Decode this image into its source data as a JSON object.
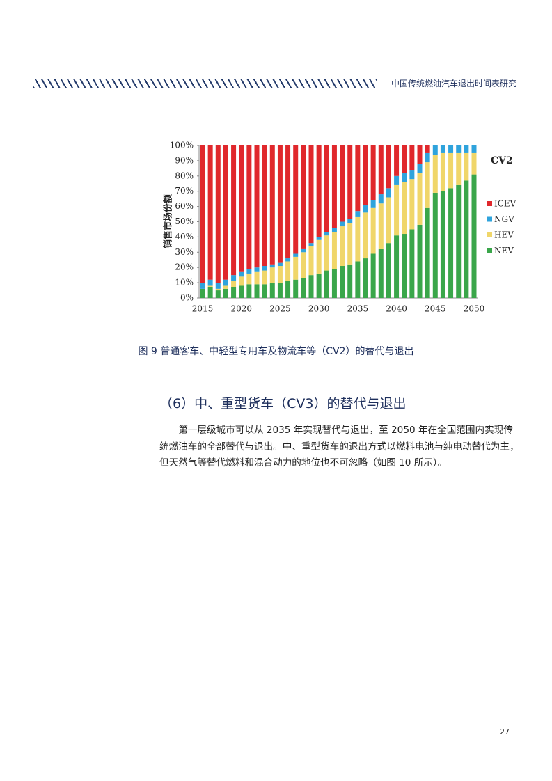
{
  "header": {
    "title": "中国传统燃油汽车退出时间表研究"
  },
  "chart_data": {
    "type": "bar",
    "stacked": true,
    "annotation": "CV2",
    "ylabel": "销售市场份额",
    "categories": [
      "2015",
      null,
      null,
      null,
      null,
      "2020",
      null,
      null,
      null,
      null,
      "2025",
      null,
      null,
      null,
      null,
      "2030",
      null,
      null,
      null,
      null,
      "2035",
      null,
      null,
      null,
      null,
      "2040",
      null,
      null,
      null,
      null,
      "2045",
      null,
      null,
      null,
      null,
      "2050"
    ],
    "series": [
      {
        "name": "ICEV",
        "color": "#e0282c",
        "values": [
          90,
          88,
          90,
          88,
          85,
          83,
          81,
          80,
          79,
          78,
          77,
          74,
          71,
          68,
          64,
          60,
          57,
          54,
          50,
          48,
          43,
          39,
          36,
          32,
          28,
          20,
          18,
          16,
          12,
          5,
          0,
          0,
          0,
          0,
          0,
          0
        ]
      },
      {
        "name": "NGV",
        "color": "#2fa3dc",
        "values": [
          4,
          4,
          4,
          4,
          4,
          3,
          3,
          3,
          3,
          2,
          2,
          2,
          2,
          2,
          2,
          2,
          2,
          3,
          3,
          3,
          4,
          5,
          5,
          6,
          6,
          6,
          6,
          6,
          6,
          6,
          6,
          5,
          5,
          5,
          5,
          5
        ]
      },
      {
        "name": "HEV",
        "color": "#f0d66a",
        "values": [
          0,
          1,
          1,
          2,
          4,
          6,
          7,
          8,
          9,
          10,
          11,
          13,
          15,
          17,
          19,
          22,
          23,
          24,
          26,
          27,
          29,
          30,
          30,
          30,
          30,
          33,
          34,
          33,
          34,
          30,
          25,
          25,
          23,
          21,
          18,
          14
        ]
      },
      {
        "name": "NEV",
        "color": "#3aa64a",
        "values": [
          6,
          7,
          5,
          6,
          7,
          8,
          9,
          9,
          9,
          10,
          10,
          11,
          12,
          13,
          15,
          16,
          18,
          19,
          21,
          22,
          24,
          26,
          29,
          32,
          36,
          41,
          42,
          45,
          48,
          59,
          69,
          70,
          72,
          74,
          77,
          81
        ]
      }
    ],
    "ylim": [
      0,
      100
    ],
    "yticks": [
      {
        "value": 0,
        "label": "0%"
      },
      {
        "value": 10,
        "label": "10%"
      },
      {
        "value": 20,
        "label": "20%"
      },
      {
        "value": 30,
        "label": "30%"
      },
      {
        "value": 40,
        "label": "40%"
      },
      {
        "value": 50,
        "label": "50%"
      },
      {
        "value": 60,
        "label": "60%"
      },
      {
        "value": 70,
        "label": "70%"
      },
      {
        "value": 80,
        "label": "80%"
      },
      {
        "value": 90,
        "label": "90%"
      },
      {
        "value": 100,
        "label": "100%"
      }
    ]
  },
  "caption": "图 9 普通客车、中轻型专用车及物流车等（CV2）的替代与退出",
  "section": {
    "heading": "（6）中、重型货车（CV3）的替代与退出",
    "paragraph": "第一层级城市可以从 2035 年实现替代与退出，至 2050 年在全国范围内实现传统燃油车的全部替代与退出。中、重型货车的退出方式以燃料电池与纯电动替代为主，但天然气等替代燃料和混合动力的地位也不可忽略（如图 10 所示）。"
  },
  "page_number": "27"
}
